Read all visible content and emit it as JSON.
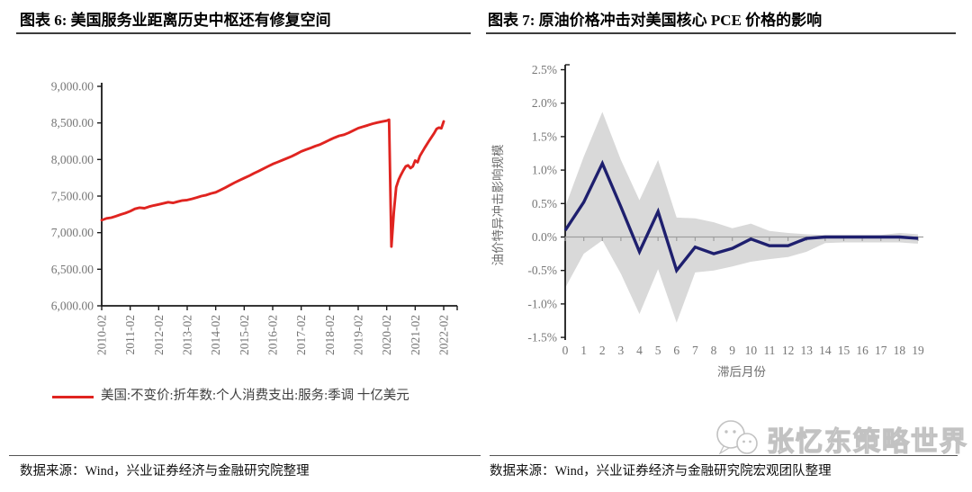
{
  "page": {
    "background": "#ffffff"
  },
  "left_panel": {
    "title": "图表 6:  美国服务业距离历史中枢还有修复空间",
    "legend_label": "美国:不变价:折年数:个人消费支出:服务:季调 十亿美元",
    "source": "数据来源：Wind，兴业证券经济与金融研究院整理"
  },
  "right_panel": {
    "title": "图表 7:  原油价格冲击对美国核心 PCE 价格的影响",
    "source": "数据来源：Wind，兴业证券经济与金融研究院宏观团队整理",
    "watermark": "张忆东策略世界",
    "watermark_icon": "wechat-icon"
  },
  "colors": {
    "red_line": "#e02420",
    "navy_line": "#1e1f6e",
    "band_gray": "#d9d9d9",
    "axis_black": "#1a1a1a",
    "zero_line_gray": "#9e9e9e",
    "tick_text_gray": "#767676"
  },
  "chart_data": [
    {
      "type": "line",
      "title": "美国服务业距离历史中枢还有修复空间",
      "ylim": [
        6000,
        9000
      ],
      "y_ticks": [
        9000,
        8500,
        8000,
        7500,
        7000,
        6500,
        6000
      ],
      "y_tick_labels": [
        "9,000.00",
        "8,500.00",
        "8,000.00",
        "7,500.00",
        "7,000.00",
        "6,500.00",
        "6,000.00"
      ],
      "x_tick_labels": [
        "2010-02",
        "2011-02",
        "2012-02",
        "2013-02",
        "2014-02",
        "2015-02",
        "2016-02",
        "2017-02",
        "2018-02",
        "2019-02",
        "2020-02",
        "2021-02",
        "2022-02"
      ],
      "x_month_range": [
        0,
        144
      ],
      "grid": false,
      "legend_position": "bottom",
      "series": [
        {
          "name": "美国:不变价:折年数:个人消费支出:服务:季调 十亿美元",
          "color": "#e02420",
          "points": [
            [
              0,
              7170
            ],
            [
              2,
              7195
            ],
            [
              4,
              7205
            ],
            [
              6,
              7225
            ],
            [
              8,
              7248
            ],
            [
              10,
              7268
            ],
            [
              12,
              7293
            ],
            [
              14,
              7325
            ],
            [
              16,
              7342
            ],
            [
              18,
              7334
            ],
            [
              20,
              7356
            ],
            [
              22,
              7372
            ],
            [
              24,
              7386
            ],
            [
              26,
              7400
            ],
            [
              28,
              7416
            ],
            [
              30,
              7406
            ],
            [
              32,
              7424
            ],
            [
              34,
              7440
            ],
            [
              36,
              7446
            ],
            [
              38,
              7462
            ],
            [
              40,
              7480
            ],
            [
              42,
              7500
            ],
            [
              44,
              7514
            ],
            [
              46,
              7536
            ],
            [
              48,
              7552
            ],
            [
              50,
              7582
            ],
            [
              52,
              7614
            ],
            [
              54,
              7650
            ],
            [
              56,
              7684
            ],
            [
              58,
              7716
            ],
            [
              60,
              7746
            ],
            [
              62,
              7776
            ],
            [
              64,
              7810
            ],
            [
              66,
              7840
            ],
            [
              68,
              7872
            ],
            [
              70,
              7906
            ],
            [
              72,
              7938
            ],
            [
              74,
              7964
            ],
            [
              76,
              7990
            ],
            [
              78,
              8016
            ],
            [
              80,
              8044
            ],
            [
              82,
              8076
            ],
            [
              84,
              8110
            ],
            [
              86,
              8134
            ],
            [
              88,
              8158
            ],
            [
              90,
              8184
            ],
            [
              92,
              8206
            ],
            [
              94,
              8236
            ],
            [
              96,
              8268
            ],
            [
              98,
              8298
            ],
            [
              100,
              8324
            ],
            [
              102,
              8338
            ],
            [
              104,
              8364
            ],
            [
              106,
              8396
            ],
            [
              108,
              8428
            ],
            [
              110,
              8448
            ],
            [
              112,
              8468
            ],
            [
              114,
              8488
            ],
            [
              116,
              8504
            ],
            [
              118,
              8518
            ],
            [
              120,
              8530
            ],
            [
              121,
              8544
            ],
            [
              122,
              6810
            ],
            [
              123,
              7280
            ],
            [
              124,
              7620
            ],
            [
              125,
              7722
            ],
            [
              126,
              7790
            ],
            [
              127,
              7850
            ],
            [
              128,
              7906
            ],
            [
              129,
              7920
            ],
            [
              130,
              7882
            ],
            [
              131,
              7906
            ],
            [
              132,
              7986
            ],
            [
              133,
              7962
            ],
            [
              134,
              8050
            ],
            [
              136,
              8160
            ],
            [
              138,
              8264
            ],
            [
              140,
              8360
            ],
            [
              141,
              8418
            ],
            [
              142,
              8436
            ],
            [
              143,
              8426
            ],
            [
              144,
              8520
            ]
          ]
        }
      ]
    },
    {
      "type": "line",
      "title": "原油价格冲击对美国核心 PCE 价格的影响",
      "ylabel": "油价特异冲击影响规模",
      "xlabel": "滞后月份",
      "ylim": [
        -1.5,
        2.5
      ],
      "y_ticks": [
        2.5,
        2.0,
        1.5,
        1.0,
        0.5,
        0.0,
        -0.5,
        -1.0,
        -1.5
      ],
      "y_tick_labels": [
        "2.5%",
        "2.0%",
        "1.5%",
        "1.0%",
        "0.5%",
        "0.0%",
        "-0.5%",
        "-1.0%",
        "-1.5%"
      ],
      "x_ticks": [
        0,
        1,
        2,
        3,
        4,
        5,
        6,
        7,
        8,
        9,
        10,
        11,
        12,
        13,
        14,
        15,
        16,
        17,
        18,
        19
      ],
      "grid": false,
      "series": [
        {
          "name": "油价特异冲击影响规模（%）",
          "color": "#1e1f6e",
          "values": [
            0.1,
            0.52,
            1.1,
            0.45,
            -0.22,
            0.38,
            -0.5,
            -0.15,
            -0.25,
            -0.17,
            -0.03,
            -0.13,
            -0.13,
            -0.02,
            0.0,
            0.0,
            0.0,
            0.0,
            0.0,
            -0.02
          ]
        },
        {
          "name": "置信区间上界",
          "color": "#d9d9d9",
          "values": [
            0.45,
            1.2,
            1.87,
            1.15,
            0.55,
            1.15,
            0.29,
            0.28,
            0.22,
            0.13,
            0.2,
            0.09,
            0.06,
            0.04,
            0.03,
            0.03,
            0.03,
            0.03,
            0.06,
            0.04
          ]
        },
        {
          "name": "置信区间下界",
          "color": "#d9d9d9",
          "values": [
            -0.76,
            -0.25,
            -0.05,
            -0.55,
            -1.15,
            -0.48,
            -1.28,
            -0.53,
            -0.5,
            -0.44,
            -0.37,
            -0.33,
            -0.3,
            -0.22,
            -0.09,
            -0.08,
            -0.08,
            -0.08,
            -0.08,
            -0.1
          ]
        }
      ]
    }
  ]
}
